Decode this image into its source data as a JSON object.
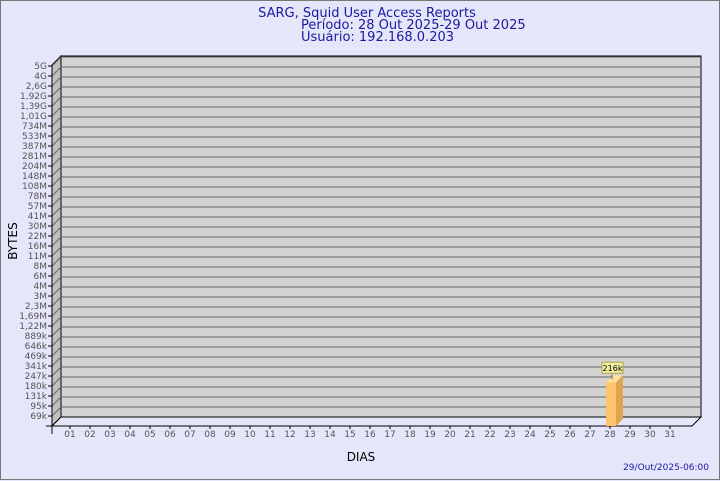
{
  "chart_data": {
    "type": "bar",
    "title": "SARG, Squid User Access Reports",
    "subtitle": [
      "Período: 28 Out 2025-29 Out 2025",
      "Usuário: 192.168.0.203"
    ],
    "xlabel": "DIAS",
    "ylabel": "BYTES",
    "y_scale": "log",
    "y_tick_labels": [
      "5G",
      "4G",
      "2,6G",
      "1,92G",
      "1,39G",
      "1,01G",
      "734M",
      "533M",
      "387M",
      "281M",
      "204M",
      "148M",
      "108M",
      "78M",
      "57M",
      "41M",
      "30M",
      "22M",
      "16M",
      "11M",
      "8M",
      "6M",
      "4M",
      "3M",
      "2,3M",
      "1,69M",
      "1,22M",
      "889k",
      "646k",
      "469k",
      "341k",
      "247k",
      "180k",
      "131k",
      "95k",
      "69k"
    ],
    "categories": [
      "01",
      "02",
      "03",
      "04",
      "05",
      "06",
      "07",
      "08",
      "09",
      "10",
      "11",
      "12",
      "13",
      "14",
      "15",
      "16",
      "17",
      "18",
      "19",
      "20",
      "21",
      "22",
      "23",
      "24",
      "25",
      "26",
      "27",
      "28",
      "29",
      "30",
      "31"
    ],
    "values": [
      null,
      null,
      null,
      null,
      null,
      null,
      null,
      null,
      null,
      null,
      null,
      null,
      null,
      null,
      null,
      null,
      null,
      null,
      null,
      null,
      null,
      null,
      null,
      null,
      null,
      null,
      null,
      216000,
      null,
      null,
      null
    ],
    "data_labels": {
      "28": "216k"
    },
    "grid": true,
    "bar_color": "#ffc36e",
    "wall_color": "#d3d3d3"
  },
  "footer": "29/Out/2025-06:00"
}
